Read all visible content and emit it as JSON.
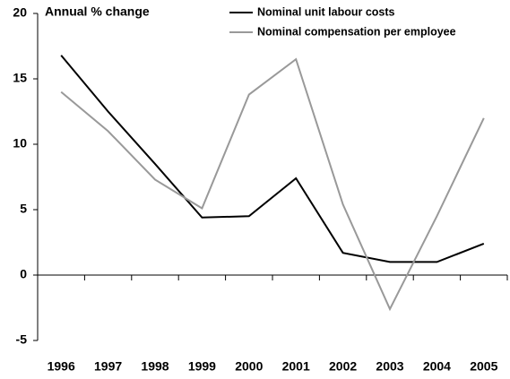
{
  "chart_data": {
    "type": "line",
    "title": "Annual % change",
    "categories": [
      "1996",
      "1997",
      "1998",
      "1999",
      "2000",
      "2001",
      "2002",
      "2003",
      "2004",
      "2005"
    ],
    "series": [
      {
        "name": "Nominal unit labour costs",
        "color": "#000000",
        "values": [
          16.8,
          12.5,
          8.5,
          4.4,
          4.5,
          7.4,
          1.7,
          1.0,
          1.0,
          2.4
        ]
      },
      {
        "name": "Nominal compensation per employee",
        "color": "#999999",
        "values": [
          14.0,
          11.0,
          7.3,
          5.1,
          13.8,
          16.5,
          5.4,
          -2.6,
          4.5,
          12.0
        ]
      }
    ],
    "ylim": [
      -5,
      20
    ],
    "yticks": [
      -5,
      0,
      5,
      10,
      15,
      20
    ],
    "grid": false,
    "legend": "top-right"
  }
}
